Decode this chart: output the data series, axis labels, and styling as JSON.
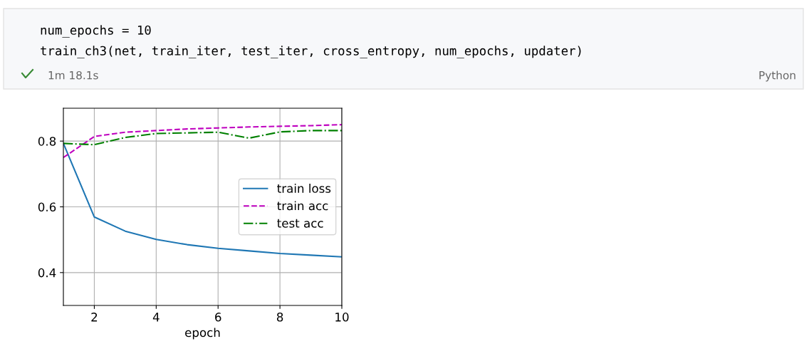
{
  "chart_data": {
    "type": "line",
    "x": [
      1,
      2,
      3,
      4,
      5,
      6,
      7,
      8,
      9,
      10
    ],
    "series": [
      {
        "name": "train loss",
        "color": "#1f77b4",
        "line_style": "solid",
        "values": [
          0.793,
          0.569,
          0.526,
          0.501,
          0.485,
          0.474,
          0.466,
          0.458,
          0.453,
          0.448
        ]
      },
      {
        "name": "train acc",
        "color": "#bf00bf",
        "line_style": "dashed",
        "values": [
          0.75,
          0.814,
          0.827,
          0.832,
          0.837,
          0.84,
          0.843,
          0.845,
          0.847,
          0.85
        ]
      },
      {
        "name": "test acc",
        "color": "#008000",
        "line_style": "dashdot",
        "values": [
          0.793,
          0.789,
          0.811,
          0.823,
          0.825,
          0.827,
          0.809,
          0.828,
          0.832,
          0.832
        ]
      }
    ],
    "xlabel": "epoch",
    "xlim": [
      1,
      10
    ],
    "xticks": [
      2,
      4,
      6,
      8,
      10
    ],
    "ylim": [
      0.3,
      0.9
    ],
    "yticks": [
      0.4,
      0.6,
      0.8
    ],
    "grid": true,
    "legend": "center right",
    "annotations": [
      "num_epochs = 10",
      "train_ch3(net, train_iter, test_iter, cross_entropy, num_epochs, updater)",
      "1m 18.1s",
      "Python"
    ]
  }
}
